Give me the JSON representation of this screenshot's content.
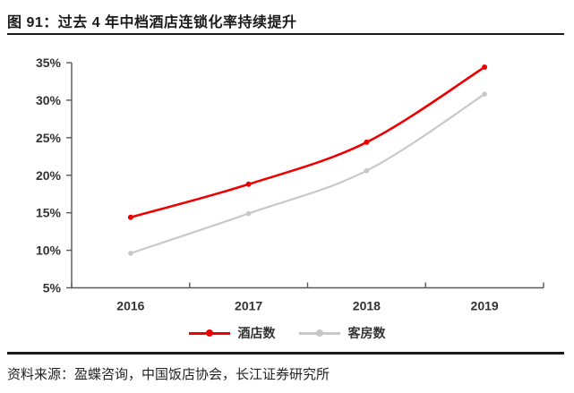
{
  "header": {
    "title": "图 91：过去 4 年中档酒店连锁化率持续提升"
  },
  "footer": {
    "source": "资料来源：盈蝶咨询，中国饭店协会，长江证券研究所"
  },
  "colors": {
    "hotels_red": "#ee0000",
    "rooms_gray": "#c8c8c8",
    "axis": "#595959",
    "tick_text": "#333333",
    "rule": "#1a1a1a"
  },
  "chart_data": {
    "type": "line",
    "title": "图 91：过去 4 年中档酒店连锁化率持续提升",
    "categories": [
      "2016",
      "2017",
      "2018",
      "2019"
    ],
    "series": [
      {
        "name": "酒店数",
        "color": "#ee0000",
        "values": [
          14.4,
          18.8,
          24.4,
          34.4
        ]
      },
      {
        "name": "客房数",
        "color": "#c8c8c8",
        "values": [
          9.6,
          14.9,
          20.6,
          30.8
        ]
      }
    ],
    "xlabel": "",
    "ylabel": "",
    "ylim": [
      5,
      35
    ],
    "y_tick_step": 5,
    "y_tick_labels": [
      "5%",
      "10%",
      "15%",
      "20%",
      "25%",
      "30%",
      "35%"
    ],
    "y_unit": "%",
    "grid": false,
    "legend_position": "bottom",
    "smooth": true,
    "marker": "circle"
  }
}
